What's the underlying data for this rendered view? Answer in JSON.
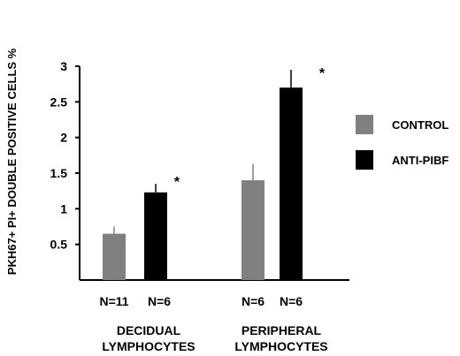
{
  "chart_data": {
    "type": "bar",
    "ylabel": "PKH67+ PI+ DOUBLE POSITIVE CELLS %",
    "ylim": [
      0,
      3
    ],
    "yticks": [
      0.5,
      1,
      1.5,
      2,
      2.5,
      3
    ],
    "ytick_labels": [
      "0.5",
      "1",
      "1.5",
      "2",
      "2.5",
      "3"
    ],
    "groups": [
      {
        "label_lines": [
          "DECIDUAL",
          "LYMPHOCYTES"
        ],
        "n_labels": [
          "N=11",
          "N=6"
        ],
        "significance": "*"
      },
      {
        "label_lines": [
          "PERIPHERAL",
          "LYMPHOCYTES"
        ],
        "n_labels": [
          "N=6",
          "N=6"
        ],
        "significance": "*"
      }
    ],
    "series": [
      {
        "name": "CONTROL",
        "color": "#808080",
        "values": [
          0.65,
          1.4
        ],
        "errors": [
          0.1,
          0.23
        ]
      },
      {
        "name": "ANTI-PIBF",
        "color": "#000000",
        "values": [
          1.23,
          2.7
        ],
        "errors": [
          0.12,
          0.25
        ]
      }
    ],
    "legend_position": "right",
    "grid": false
  }
}
